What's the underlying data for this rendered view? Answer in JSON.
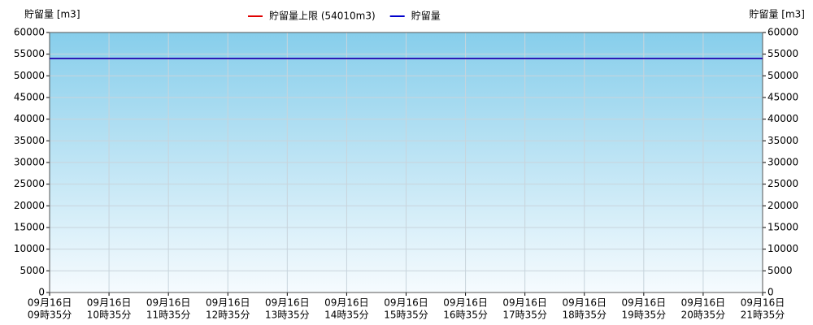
{
  "chart_data": {
    "type": "line",
    "y_label": "貯留量 [m3]",
    "y2_label": "貯留量 [m3]",
    "categories": [
      [
        "09月16日",
        "09時35分"
      ],
      [
        "09月16日",
        "10時35分"
      ],
      [
        "09月16日",
        "11時35分"
      ],
      [
        "09月16日",
        "12時35分"
      ],
      [
        "09月16日",
        "13時35分"
      ],
      [
        "09月16日",
        "14時35分"
      ],
      [
        "09月16日",
        "15時35分"
      ],
      [
        "09月16日",
        "16時35分"
      ],
      [
        "09月16日",
        "17時35分"
      ],
      [
        "09月16日",
        "18時35分"
      ],
      [
        "09月16日",
        "19時35分"
      ],
      [
        "09月16日",
        "20時35分"
      ],
      [
        "09月16日",
        "21時35分"
      ]
    ],
    "series": [
      {
        "name": "貯留量上限 (54010m3)",
        "color": "#e00000",
        "values": [
          54010,
          54010,
          54010,
          54010,
          54010,
          54010,
          54010,
          54010,
          54010,
          54010,
          54010,
          54010,
          54010
        ]
      },
      {
        "name": "貯留量",
        "color": "#0000cc",
        "values": [
          54010,
          54010,
          54010,
          54010,
          54010,
          54010,
          54010,
          54010,
          54010,
          54010,
          54010,
          54010,
          54010
        ]
      }
    ],
    "ylim": [
      0,
      60000
    ],
    "yticks": [
      0,
      5000,
      10000,
      15000,
      20000,
      25000,
      30000,
      35000,
      40000,
      45000,
      50000,
      55000,
      60000
    ],
    "y2lim": [
      0,
      60000
    ],
    "y2ticks": [
      0,
      5000,
      10000,
      15000,
      20000,
      25000,
      30000,
      35000,
      40000,
      45000,
      50000,
      55000,
      60000
    ],
    "grid": true
  }
}
